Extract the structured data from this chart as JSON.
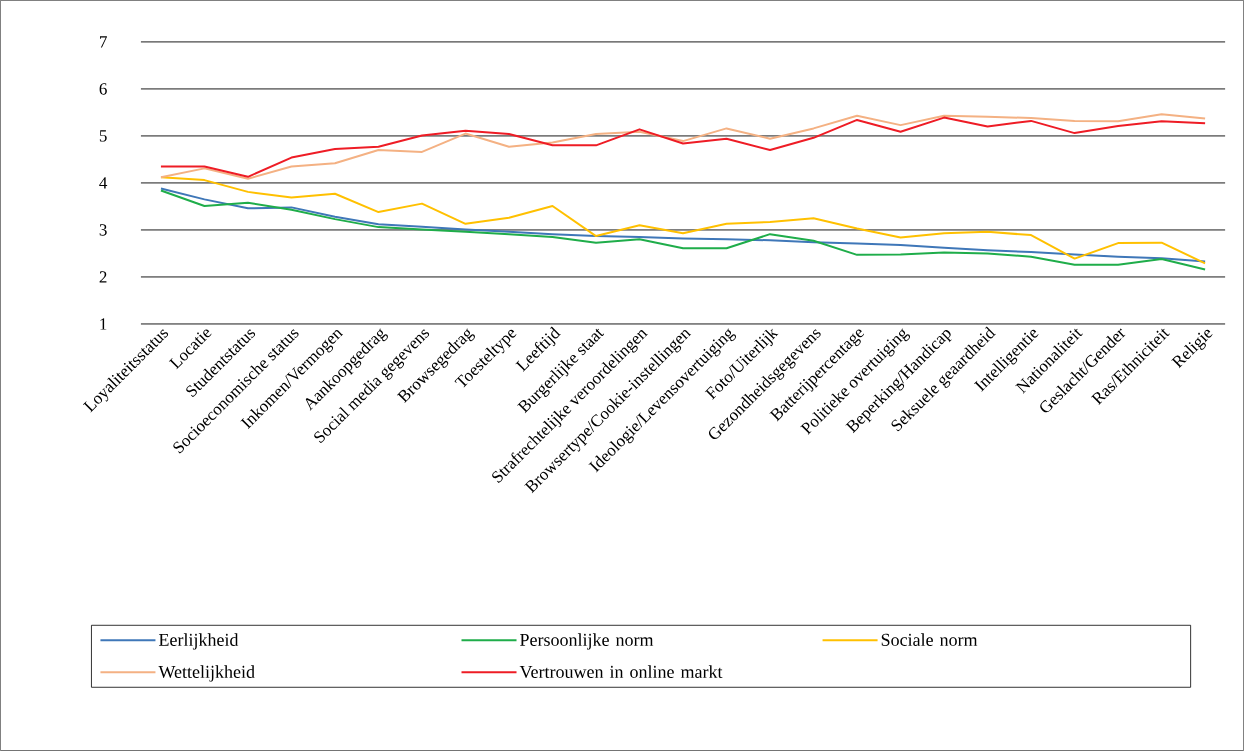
{
  "chart_data": {
    "type": "line",
    "categories": [
      "Loyaliteitsstatus",
      "Locatie",
      "Studentstatus",
      "Socioeconomische status",
      "Inkomen/Vermogen",
      "Aankoopgedrag",
      "Social media gegevens",
      "Browsegedrag",
      "Toesteltype",
      "Leeftijd",
      "Burgerlijke staat",
      "Strafrechtelijke veroordelingen",
      "Browsertype/Cookie-instellingen",
      "Ideologie/Levensovertuiging",
      "Foto/Uiterlijk",
      "Gezondheidsgegevens",
      "Batterijpercentage",
      "Politieke overtuiging",
      "Beperking/Handicap",
      "Seksuele geaardheid",
      "Intelligentie",
      "Nationaliteit",
      "Geslacht/Gender",
      "Ras/Ethniciteit",
      "Religie"
    ],
    "series": [
      {
        "name": "Eerlijkheid",
        "color": "#3f77b8",
        "values": [
          3.88,
          3.65,
          3.46,
          3.48,
          3.28,
          3.12,
          3.07,
          3.01,
          2.96,
          2.91,
          2.87,
          2.85,
          2.82,
          2.8,
          2.78,
          2.74,
          2.71,
          2.68,
          2.62,
          2.57,
          2.53,
          2.48,
          2.43,
          2.4,
          2.33
        ]
      },
      {
        "name": "Persoonlijke norm",
        "color": "#1fad4a",
        "values": [
          3.84,
          3.51,
          3.58,
          3.43,
          3.23,
          3.06,
          3.01,
          2.96,
          2.91,
          2.85,
          2.73,
          2.8,
          2.61,
          2.61,
          2.91,
          2.77,
          2.47,
          2.48,
          2.52,
          2.5,
          2.43,
          2.26,
          2.26,
          2.38,
          2.16
        ]
      },
      {
        "name": "Sociale norm",
        "color": "#ffc000",
        "values": [
          4.12,
          4.06,
          3.81,
          3.69,
          3.77,
          3.38,
          3.56,
          3.13,
          3.26,
          3.51,
          2.87,
          3.1,
          2.93,
          3.13,
          3.17,
          3.25,
          3.03,
          2.84,
          2.93,
          2.96,
          2.89,
          2.39,
          2.72,
          2.73,
          2.29
        ]
      },
      {
        "name": "Wettelijkheid",
        "color": "#f4b183",
        "values": [
          4.12,
          4.31,
          4.09,
          4.35,
          4.42,
          4.7,
          4.66,
          5.05,
          4.77,
          4.86,
          5.04,
          5.09,
          4.89,
          5.16,
          4.94,
          5.16,
          5.43,
          5.23,
          5.43,
          5.41,
          5.38,
          5.32,
          5.31,
          5.46,
          5.37
        ]
      },
      {
        "name": "Vertrouwen in online markt",
        "color": "#ee1c25",
        "values": [
          4.35,
          4.35,
          4.13,
          4.54,
          4.72,
          4.77,
          5.01,
          5.11,
          5.04,
          4.8,
          4.8,
          5.14,
          4.84,
          4.94,
          4.7,
          4.96,
          5.34,
          5.09,
          5.39,
          5.2,
          5.32,
          5.06,
          5.21,
          5.31,
          5.27
        ]
      }
    ],
    "ylim": [
      1,
      7
    ],
    "yticks": [
      1,
      2,
      3,
      4,
      5,
      6,
      7
    ],
    "grid": "y",
    "legend": "bottom"
  }
}
